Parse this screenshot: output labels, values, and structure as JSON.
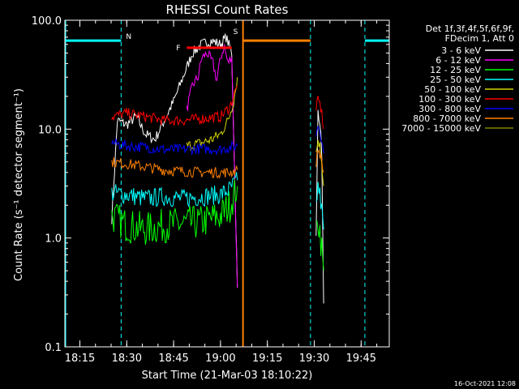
{
  "chart_data": {
    "type": "line",
    "title": "RHESSI Count Rates",
    "xlabel": "Start Time (21-Mar-03 18:10:22)",
    "ylabel": "Count Rate (s⁻¹ detector segment⁻¹)",
    "footer": "16-Oct-2021 12:08",
    "y_scale": "log",
    "ylim": [
      0.1,
      100
    ],
    "xlim_minutes": [
      18.17,
      19.9
    ],
    "x_tick_labels": [
      "18:15",
      "18:30",
      "18:45",
      "19:00",
      "19:15",
      "19:30",
      "19:45"
    ],
    "x_tick_values_minutes": [
      18.25,
      18.5,
      18.75,
      19.0,
      19.25,
      19.5,
      19.75
    ],
    "y_tick_labels": [
      "0.1",
      "1.0",
      "10.0",
      "100.0"
    ],
    "y_tick_values": [
      0.1,
      1,
      10,
      100
    ],
    "legend": {
      "position": "right",
      "header": [
        "Det 1f,3f,4f,5f,6f,9f,",
        "FDecim 1, Att 0"
      ],
      "entries": [
        {
          "label": "3 - 6 keV",
          "color": "#ffffff"
        },
        {
          "label": "6 - 12 keV",
          "color": "#ff00ff"
        },
        {
          "label": "12 - 25 keV",
          "color": "#00ff00"
        },
        {
          "label": "25 - 50 keV",
          "color": "#00ffff"
        },
        {
          "label": "50 - 100 keV",
          "color": "#d4d400"
        },
        {
          "label": "100 - 300 keV",
          "color": "#ff0000"
        },
        {
          "label": "300 - 800 keV",
          "color": "#0000ff"
        },
        {
          "label": "800 - 7000 keV",
          "color": "#ff8000"
        },
        {
          "label": "7000 - 15000 keV",
          "color": "#808000"
        }
      ]
    },
    "annotations": {
      "night": {
        "label": "N",
        "color": "#00ffff",
        "level": 65,
        "segments_minutes": [
          [
            18.17,
            18.47
          ],
          [
            19.77,
            19.9
          ]
        ],
        "dashed_lines_minutes": [
          18.47,
          19.77
        ]
      },
      "flare": {
        "label": "F",
        "color": "#ff0000",
        "level": 56,
        "range_minutes": [
          18.82,
          19.06
        ]
      },
      "saa": {
        "label": "S",
        "color": "#ff8000",
        "level": 65,
        "range_minutes": [
          19.12,
          19.48
        ],
        "dashed_line_minutes": 19.48
      }
    },
    "series": [
      {
        "band": "3 - 6 keV",
        "color": "#ffffff",
        "segments": [
          {
            "x": [
              18.42,
              18.45,
              18.5,
              18.55,
              18.6,
              18.65,
              18.7,
              18.75,
              18.8,
              18.85,
              18.9,
              18.95,
              19.0,
              19.03,
              19.06,
              19.09
            ],
            "y": [
              1.5,
              12,
              11,
              13,
              9,
              8,
              12,
              18,
              30,
              50,
              60,
              65,
              60,
              70,
              50,
              0.35
            ]
          },
          {
            "x": [
              19.51,
              19.52,
              19.53,
              19.54,
              19.55
            ],
            "y": [
              1.0,
              15,
              12,
              6,
              0.25
            ]
          }
        ]
      },
      {
        "band": "6 - 12 keV",
        "color": "#ff00ff",
        "segments": [
          {
            "x": [
              18.82,
              18.85,
              18.88,
              18.9,
              18.93,
              18.96,
              18.98,
              19.0,
              19.02,
              19.04,
              19.06,
              19.09
            ],
            "y": [
              15,
              25,
              30,
              45,
              50,
              40,
              28,
              45,
              58,
              40,
              48,
              0.35
            ]
          }
        ]
      },
      {
        "band": "12 - 25 keV",
        "color": "#00ff00",
        "segments": [
          {
            "x": [
              18.42,
              18.5,
              18.6,
              18.7,
              18.8,
              18.9,
              19.0,
              19.05,
              19.09
            ],
            "y": [
              1.6,
              1.3,
              1.2,
              1.3,
              1.35,
              1.4,
              1.6,
              2.0,
              3.0
            ]
          },
          {
            "x": [
              19.51,
              19.52,
              19.53,
              19.54,
              19.55
            ],
            "y": [
              1.0,
              1.5,
              1.2,
              0.8,
              0.5
            ]
          }
        ]
      },
      {
        "band": "25 - 50 keV",
        "color": "#00ffff",
        "segments": [
          {
            "x": [
              18.42,
              18.5,
              18.6,
              18.7,
              18.8,
              18.9,
              19.0,
              19.05,
              19.09
            ],
            "y": [
              2.6,
              2.5,
              2.3,
              2.4,
              2.3,
              2.4,
              2.5,
              2.8,
              3.4
            ]
          },
          {
            "x": [
              19.51,
              19.52,
              19.53,
              19.54,
              19.55
            ],
            "y": [
              2.0,
              3.0,
              2.5,
              1.8,
              1.2
            ]
          }
        ]
      },
      {
        "band": "50 - 100 keV",
        "color": "#d4d400",
        "segments": [
          {
            "x": [
              18.82,
              18.9,
              18.95,
              19.0,
              19.04,
              19.07,
              19.09
            ],
            "y": [
              7,
              7.5,
              8,
              9,
              12,
              18,
              30
            ]
          },
          {
            "x": [
              19.51,
              19.52,
              19.53,
              19.54,
              19.55
            ],
            "y": [
              6,
              8,
              7,
              5,
              3
            ]
          }
        ]
      },
      {
        "band": "100 - 300 keV",
        "color": "#ff0000",
        "segments": [
          {
            "x": [
              18.42,
              18.5,
              18.6,
              18.7,
              18.8,
              18.9,
              19.0,
              19.05,
              19.09
            ],
            "y": [
              13,
              14,
              13,
              12,
              12,
              12.5,
              13,
              16,
              25
            ]
          },
          {
            "x": [
              19.51,
              19.52,
              19.53,
              19.54,
              19.55
            ],
            "y": [
              16,
              18,
              17,
              14,
              10
            ]
          }
        ]
      },
      {
        "band": "300 - 800 keV",
        "color": "#0000ff",
        "segments": [
          {
            "x": [
              18.42,
              18.5,
              18.6,
              18.7,
              18.8,
              18.9,
              19.0,
              19.05,
              19.09
            ],
            "y": [
              7.5,
              7,
              6.8,
              6.5,
              6.5,
              6.6,
              6.5,
              6.8,
              7
            ]
          },
          {
            "x": [
              19.51,
              19.52,
              19.53,
              19.54,
              19.55
            ],
            "y": [
              9,
              11,
              10,
              8,
              6
            ]
          }
        ]
      },
      {
        "band": "800 - 7000 keV",
        "color": "#ff8000",
        "segments": [
          {
            "x": [
              18.42,
              18.5,
              18.6,
              18.7,
              18.8,
              18.9,
              19.0,
              19.05,
              19.09
            ],
            "y": [
              5,
              4.8,
              4.5,
              4.2,
              4.1,
              4.0,
              4.0,
              4.0,
              4.2
            ]
          },
          {
            "x": [
              19.51,
              19.52,
              19.53,
              19.54,
              19.55
            ],
            "y": [
              5,
              6.5,
              6,
              5,
              4
            ]
          }
        ]
      }
    ]
  }
}
